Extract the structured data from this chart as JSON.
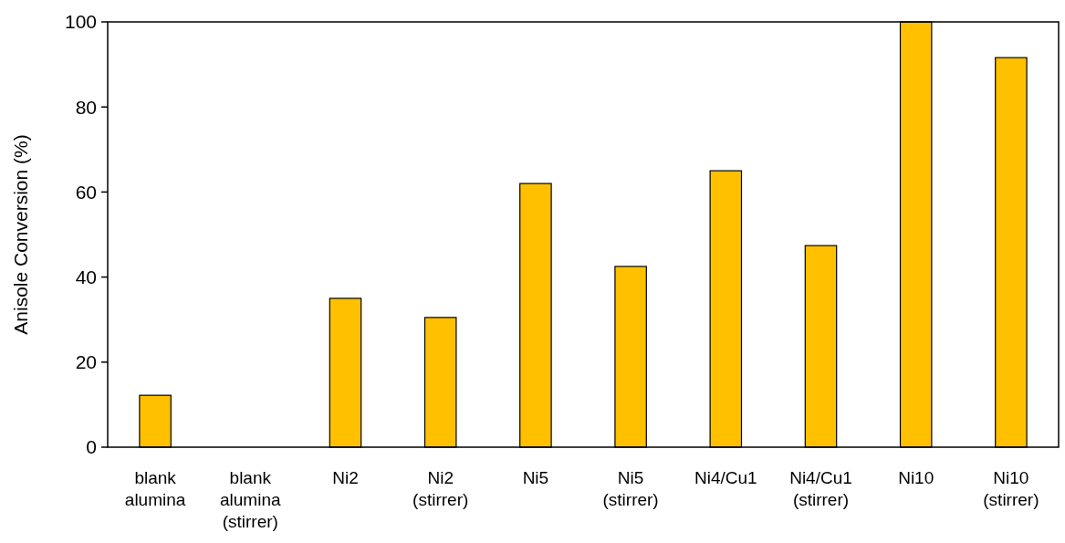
{
  "chart_data": {
    "type": "bar",
    "ylabel": "Anisole Conversion (%)",
    "categories": [
      "blank alumina",
      "blank alumina (stirrer)",
      "Ni2",
      "Ni2 (stirrer)",
      "Ni5",
      "Ni5 (stirrer)",
      "Ni4/Cu1",
      "Ni4/Cu1 (stirrer)",
      "Ni10",
      "Ni10 (stirrer)"
    ],
    "values": [
      12.2,
      0,
      35,
      30.5,
      62,
      42.5,
      65,
      47.4,
      100,
      91.6
    ],
    "color": "#ffc000",
    "ylim": [
      0,
      100
    ],
    "yticks": [
      0,
      20,
      40,
      60,
      80,
      100
    ]
  }
}
